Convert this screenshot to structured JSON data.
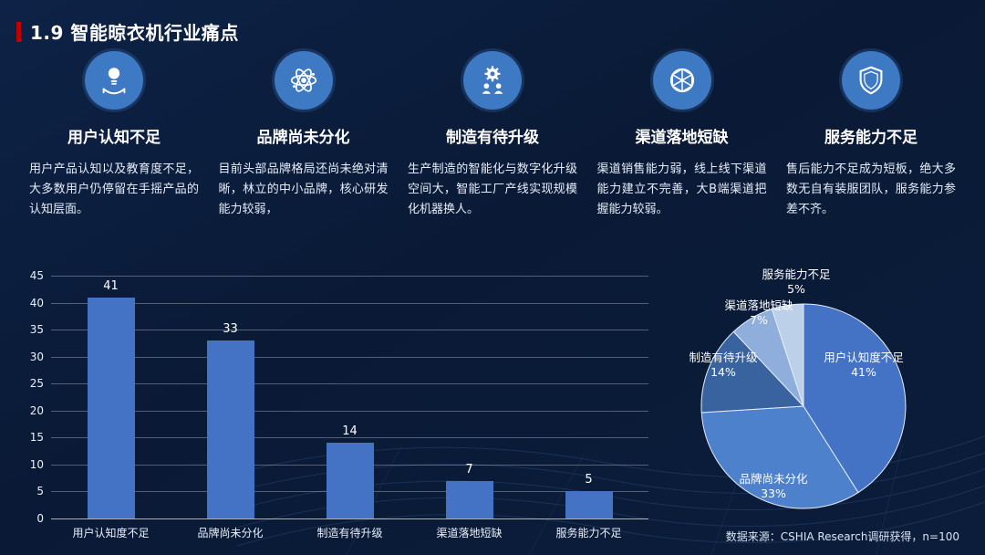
{
  "slide": {
    "title": "1.9 智能晾衣机行业痛点",
    "source_note": "数据来源：CSHIA Research调研获得，n=100"
  },
  "colors": {
    "background": "#0B1D3B",
    "title_accent": "#C00000",
    "icon_circle": "#3E79C4",
    "bar": "#4472C4"
  },
  "pain_points": [
    {
      "icon": "hand-lightbulb-icon",
      "title": "用户认知不足",
      "desc": "用户产品认知以及教育度不足，大多数用户仍停留在手摇产品的认知层面。"
    },
    {
      "icon": "atom-icon",
      "title": "品牌尚未分化",
      "desc": "目前头部品牌格局还尚未绝对清晰，林立的中小品牌，核心研发能力较弱，"
    },
    {
      "icon": "gear-people-icon",
      "title": "制造有待升级",
      "desc": "生产制造的智能化与数字化升级空间大，智能工厂产线实现规模化机器换人。"
    },
    {
      "icon": "wireframe-globe-icon",
      "title": "渠道落地短缺",
      "desc": "渠道销售能力弱，线上线下渠道能力建立不完善，大B端渠道把握能力较弱。"
    },
    {
      "icon": "shield-icon",
      "title": "服务能力不足",
      "desc": "售后能力不足成为短板，绝大多数无自有装服团队，服务能力参差不齐。"
    }
  ],
  "chart_data": [
    {
      "type": "bar",
      "title": "",
      "categories": [
        "用户认知度不足",
        "品牌尚未分化",
        "制造有待升级",
        "渠道落地短缺",
        "服务能力不足"
      ],
      "values": [
        41,
        33,
        14,
        7,
        5
      ],
      "ylim": [
        0,
        45
      ],
      "ytick_step": 5,
      "bar_color": "#4472C4",
      "grid": true,
      "value_labels": true
    },
    {
      "type": "pie",
      "start_angle_deg": 0,
      "direction": "clockwise",
      "slices": [
        {
          "label": "用户认知度不足",
          "pct": 41,
          "pct_label": "41%",
          "color": "#4472C4"
        },
        {
          "label": "品牌尚未分化",
          "pct": 33,
          "pct_label": "33%",
          "color": "#4E81CC"
        },
        {
          "label": "制造有待升级",
          "pct": 14,
          "pct_label": "14%",
          "color": "#38639F"
        },
        {
          "label": "渠道落地短缺",
          "pct": 7,
          "pct_label": "7%",
          "color": "#8FAEDC"
        },
        {
          "label": "服务能力不足",
          "pct": 5,
          "pct_label": "5%",
          "color": "#BDD0EA"
        }
      ]
    }
  ]
}
